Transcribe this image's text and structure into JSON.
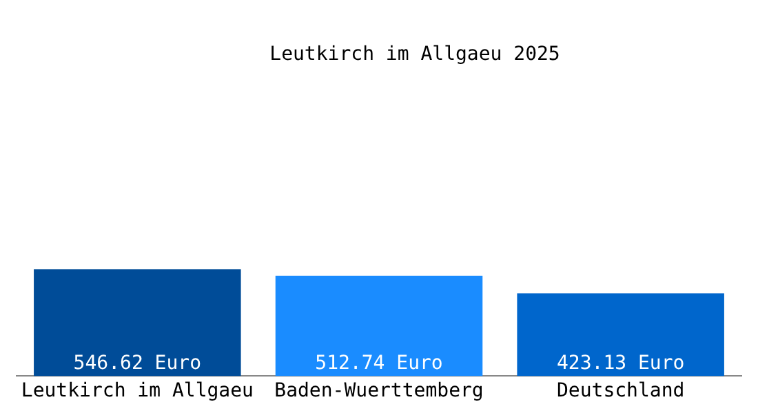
{
  "chart_data": {
    "type": "bar",
    "title": "Leutkirch im Allgaeu 2025",
    "categories": [
      "Leutkirch im Allgaeu",
      "Baden-Wuerttemberg",
      "Deutschland"
    ],
    "values": [
      546.62,
      512.74,
      423.13
    ],
    "colors": [
      "#004c98",
      "#1a8cff",
      "#0066cc"
    ],
    "value_labels": [
      "546.62 Euro",
      "512.74 Euro",
      "423.13 Euro"
    ],
    "tick_labels": "x",
    "grid": false,
    "legend": false
  }
}
